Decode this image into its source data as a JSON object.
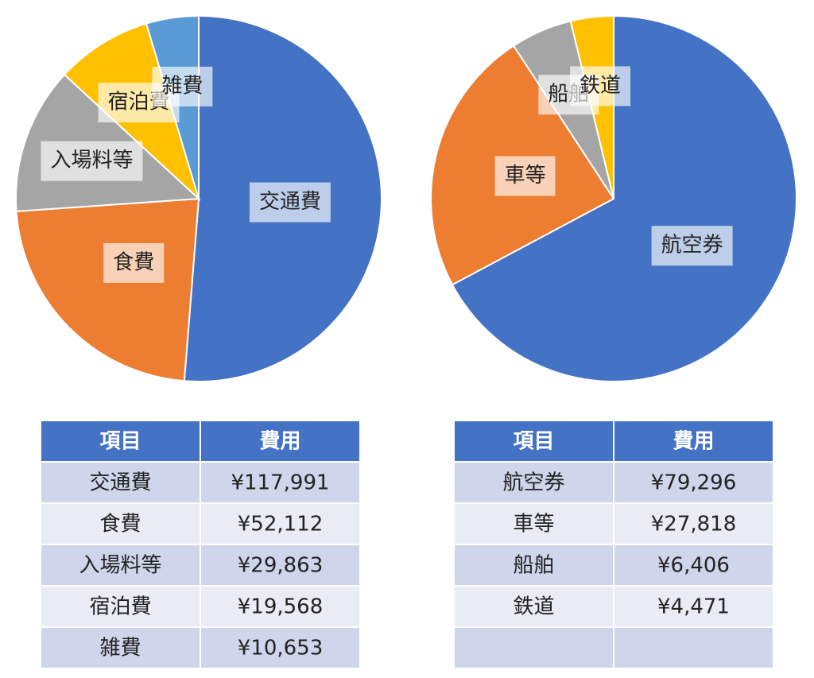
{
  "chart_data": [
    {
      "type": "pie",
      "table_header": [
        "項目",
        "費用"
      ],
      "categories": [
        "交通費",
        "食費",
        "入場料等",
        "宿泊費",
        "雑費"
      ],
      "values": [
        117991,
        52112,
        29863,
        19568,
        10653
      ],
      "value_labels": [
        "¥117,991",
        "¥52,112",
        "¥29,863",
        "¥19,568",
        "¥10,653"
      ],
      "colors": [
        "#4472c4",
        "#ed7d31",
        "#a5a5a5",
        "#ffc000",
        "#5b9bd5"
      ]
    },
    {
      "type": "pie",
      "table_header": [
        "項目",
        "費用"
      ],
      "categories": [
        "航空券",
        "車等",
        "船舶",
        "鉄道"
      ],
      "values": [
        79296,
        27818,
        6406,
        4471
      ],
      "value_labels": [
        "¥79,296",
        "¥27,818",
        "¥6,406",
        "¥4,471"
      ],
      "colors": [
        "#4472c4",
        "#ed7d31",
        "#a5a5a5",
        "#ffc000"
      ]
    }
  ]
}
